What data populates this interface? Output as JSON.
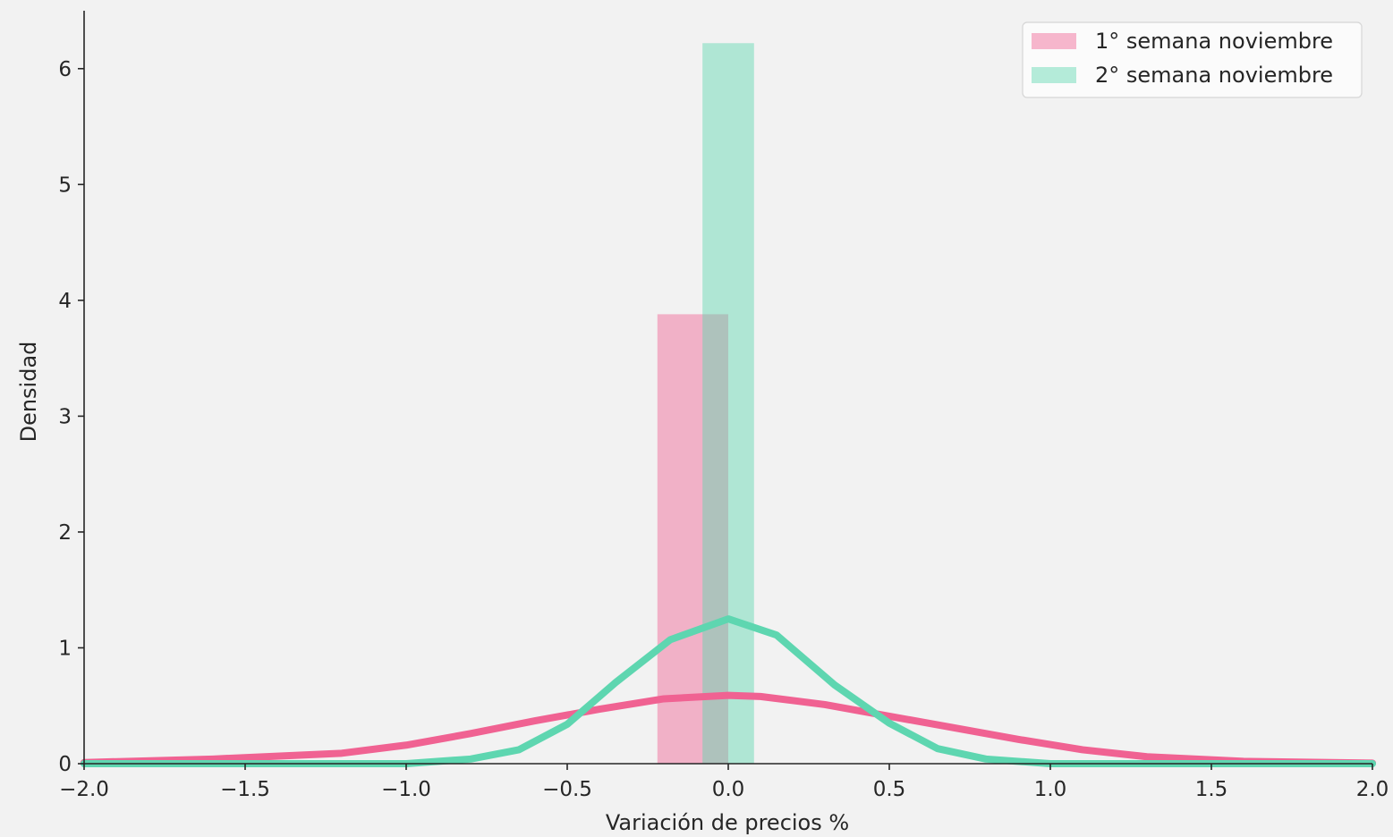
{
  "chart_data": {
    "type": "bar",
    "xlabel": "Variación de precios %",
    "ylabel": "Densidad",
    "xlim": [
      -2.0,
      2.0
    ],
    "ylim": [
      0,
      6.5
    ],
    "x_ticks": [
      -2.0,
      -1.5,
      -1.0,
      -0.5,
      0.0,
      0.5,
      1.0,
      1.5,
      2.0
    ],
    "x_tick_labels": [
      "−2.0",
      "−1.5",
      "−1.0",
      "−0.5",
      "0.0",
      "0.5",
      "1.0",
      "1.5",
      "2.0"
    ],
    "y_ticks": [
      0,
      1,
      2,
      3,
      4,
      5,
      6
    ],
    "y_tick_labels": [
      "0",
      "1",
      "2",
      "3",
      "4",
      "5",
      "6"
    ],
    "grid": false,
    "legend_position": "top-right",
    "series": [
      {
        "name": "1° semana noviembre",
        "color": "#f06292",
        "histogram": {
          "bins": [
            [
              -0.22,
              0.0
            ]
          ],
          "density": [
            3.88
          ]
        },
        "kde": {
          "x": [
            -2.0,
            -1.6,
            -1.2,
            -1.0,
            -0.8,
            -0.6,
            -0.4,
            -0.2,
            0.0,
            0.1,
            0.3,
            0.5,
            0.7,
            0.9,
            1.1,
            1.3,
            1.6,
            2.0
          ],
          "y": [
            0.01,
            0.04,
            0.09,
            0.16,
            0.26,
            0.37,
            0.47,
            0.56,
            0.59,
            0.58,
            0.51,
            0.41,
            0.31,
            0.21,
            0.12,
            0.06,
            0.02,
            0.005
          ]
        }
      },
      {
        "name": "2° semana noviembre",
        "color": "#5ed6b0",
        "histogram": {
          "bins": [
            [
              -0.08,
              0.08
            ]
          ],
          "density": [
            6.22
          ]
        },
        "kde": {
          "x": [
            -2.0,
            -1.0,
            -0.8,
            -0.65,
            -0.5,
            -0.35,
            -0.18,
            0.0,
            0.15,
            0.33,
            0.5,
            0.65,
            0.8,
            1.0,
            2.0
          ],
          "y": [
            0.0,
            0.0,
            0.04,
            0.12,
            0.34,
            0.7,
            1.07,
            1.25,
            1.11,
            0.68,
            0.35,
            0.13,
            0.04,
            0.0,
            0.0
          ]
        }
      }
    ]
  }
}
